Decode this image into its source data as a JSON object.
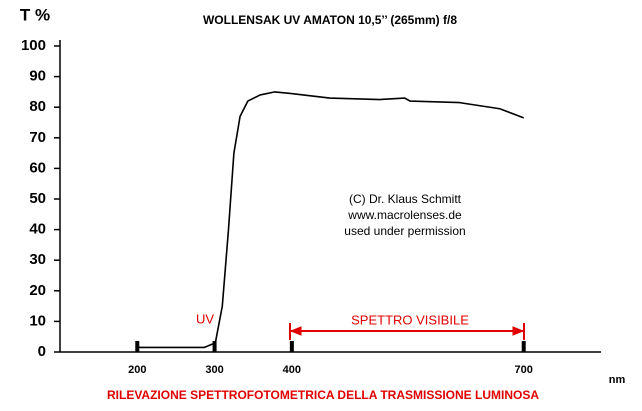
{
  "chart_data": {
    "type": "line",
    "title": "WOLLENSAK UV AMATON 10,5’’ (265mm) f/8",
    "y_label": "T %",
    "x_label": "nm",
    "footer": "RILEVAZIONE SPETTROFOTOMETRICA DELLA TRASMISSIONE LUMINOSA",
    "annotations": [
      "(C) Dr. Klaus Schmitt",
      "www.macrolenses.de",
      "used under permission"
    ],
    "uv_label": "UV",
    "visible_label": "SPETTRO VISIBILE",
    "series": [
      {
        "color": "#000000",
        "x": [
          200,
          287,
          301,
          310,
          318,
          325,
          333,
          343,
          359,
          378,
          398,
          449,
          514,
          546,
          553,
          617,
          669,
          700
        ],
        "values": [
          1.5,
          1.5,
          3,
          15,
          40,
          65,
          77,
          82,
          84,
          85,
          84.5,
          83,
          82.5,
          83,
          82,
          81.5,
          79.5,
          76.5
        ]
      }
    ],
    "xlim": [
      100,
      800
    ],
    "xticks": [
      200,
      300,
      400,
      700
    ],
    "ylim": [
      0,
      100
    ],
    "yticks": [
      0,
      10,
      20,
      30,
      40,
      50,
      60,
      70,
      80,
      90,
      100
    ]
  }
}
